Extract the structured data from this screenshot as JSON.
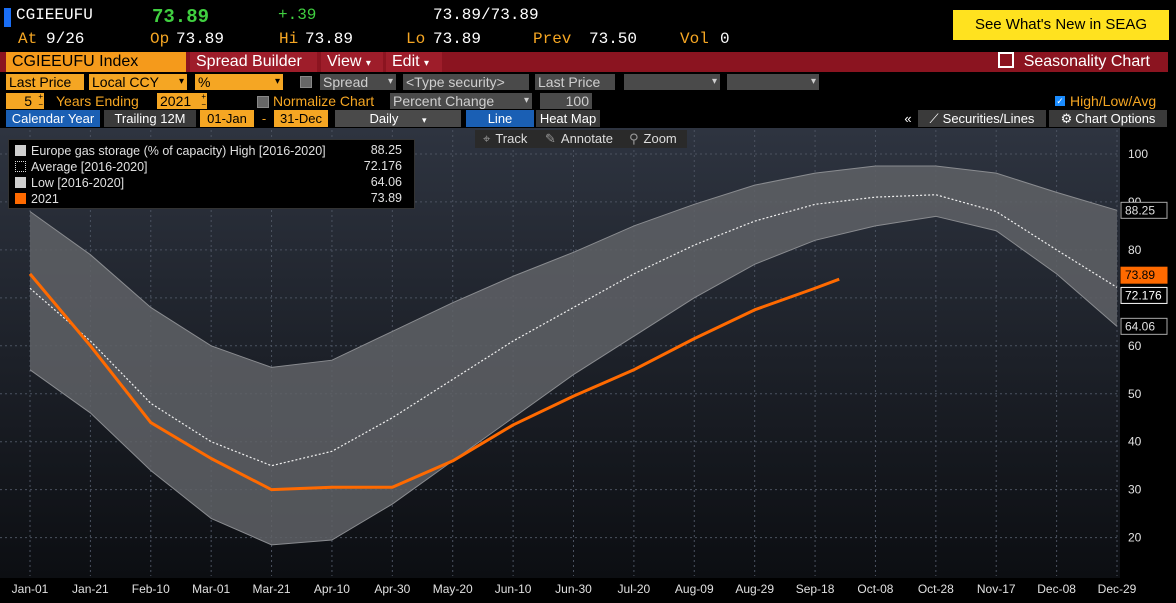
{
  "quote": {
    "ticker": "CGIEEUFU",
    "last": "73.89",
    "change": "+.39",
    "bid_ask": "73.89/73.89",
    "at_label": "At",
    "at_value": "9/26",
    "op_label": "Op",
    "op_value": "73.89",
    "hi_label": "Hi",
    "hi_value": "73.89",
    "lo_label": "Lo",
    "lo_value": "73.89",
    "prev_label": "Prev",
    "prev_value": "73.50",
    "vol_label": "Vol",
    "vol_value": "0",
    "seag_banner": "See What's New in SEAG"
  },
  "menu": {
    "index": "CGIEEUFU Index",
    "spread_builder": "Spread Builder",
    "view": "View",
    "edit": "Edit",
    "seasonality": "Seasonality Chart"
  },
  "controls": {
    "last_price": "Last Price",
    "currency": "Local CCY",
    "pct": "%",
    "spread": "Spread",
    "type_security": "<Type security>",
    "last_price_2": "Last Price",
    "years_value": "5",
    "years_label": "Years Ending",
    "year_end": "2021",
    "normalize": "Normalize Chart",
    "percent_change": "Percent Change",
    "base_value": "100",
    "high_low_avg": "High/Low/Avg"
  },
  "tabs": {
    "calendar_year": "Calendar Year",
    "trailing": "Trailing 12M",
    "from": "01-Jan",
    "dash": "-",
    "to": "31-Dec",
    "daily": "Daily",
    "line": "Line",
    "heat_map": "Heat Map",
    "collapse": "«",
    "securities": "Securities/Lines",
    "chart_options": "Chart Options"
  },
  "chart_tools": {
    "track": "Track",
    "annotate": "Annotate",
    "zoom": "Zoom"
  },
  "colors": {
    "accent": "#f5a623",
    "menu_bg": "#8b1420",
    "series_2021": "#ff6a00",
    "band": "#5a5a5a",
    "seag": "#ffe21f"
  },
  "chart_data": {
    "type": "area",
    "title": "",
    "xlabel": "",
    "ylabel": "",
    "ylim": [
      12,
      105
    ],
    "y_ticks": [
      20,
      30,
      40,
      50,
      60,
      70,
      80,
      90,
      100
    ],
    "grid": true,
    "legend_position": "top-left",
    "x_ticks": [
      "Jan-01",
      "Jan-21",
      "Feb-10",
      "Mar-01",
      "Mar-21",
      "Apr-10",
      "Apr-30",
      "May-20",
      "Jun-10",
      "Jun-30",
      "Jul-20",
      "Aug-09",
      "Aug-29",
      "Sep-18",
      "Oct-08",
      "Oct-28",
      "Nov-17",
      "Dec-08",
      "Dec-29"
    ],
    "legend": [
      {
        "name": "Europe gas storage (% of capacity) High [2016-2020]",
        "value": "88.25"
      },
      {
        "name": "Average  [2016-2020]",
        "value": "72.176"
      },
      {
        "name": "Low  [2016-2020]",
        "value": "64.06"
      },
      {
        "name": "2021",
        "value": "73.89"
      }
    ],
    "axis_value_labels": [
      "88.25",
      "73.89",
      "72.176",
      "64.06"
    ],
    "series": [
      {
        "name": "High [2016-2020]",
        "x": [
          "Jan-01",
          "Jan-21",
          "Feb-10",
          "Mar-01",
          "Mar-21",
          "Apr-10",
          "Apr-30",
          "May-20",
          "Jun-10",
          "Jun-30",
          "Jul-20",
          "Aug-09",
          "Aug-29",
          "Sep-18",
          "Oct-08",
          "Oct-28",
          "Nov-17",
          "Dec-08",
          "Dec-29"
        ],
        "values": [
          88,
          79,
          68,
          60,
          55.5,
          57,
          63,
          69,
          74.5,
          79.5,
          85,
          89.5,
          93.5,
          96,
          97.5,
          97.5,
          96,
          92,
          88.25
        ]
      },
      {
        "name": "Average [2016-2020]",
        "x": [
          "Jan-01",
          "Jan-21",
          "Feb-10",
          "Mar-01",
          "Mar-21",
          "Apr-10",
          "Apr-30",
          "May-20",
          "Jun-10",
          "Jun-30",
          "Jul-20",
          "Aug-09",
          "Aug-29",
          "Sep-18",
          "Oct-08",
          "Oct-28",
          "Nov-17",
          "Dec-08",
          "Dec-29"
        ],
        "values": [
          72,
          61,
          48,
          40,
          35,
          38,
          45,
          53,
          61,
          68,
          75,
          81,
          86,
          89.5,
          91,
          91.5,
          88,
          80,
          72.176
        ]
      },
      {
        "name": "Low [2016-2020]",
        "x": [
          "Jan-01",
          "Jan-21",
          "Feb-10",
          "Mar-01",
          "Mar-21",
          "Apr-10",
          "Apr-30",
          "May-20",
          "Jun-10",
          "Jun-30",
          "Jul-20",
          "Aug-09",
          "Aug-29",
          "Sep-18",
          "Oct-08",
          "Oct-28",
          "Nov-17",
          "Dec-08",
          "Dec-29"
        ],
        "values": [
          55,
          46,
          34,
          24,
          18.5,
          19.5,
          27,
          36,
          45,
          54,
          62,
          70,
          77,
          82,
          85,
          87,
          84,
          75,
          64.06
        ]
      },
      {
        "name": "2021",
        "x": [
          "Jan-01",
          "Jan-21",
          "Feb-10",
          "Mar-01",
          "Mar-21",
          "Apr-10",
          "Apr-30",
          "May-20",
          "Jun-10",
          "Jun-30",
          "Jul-20",
          "Aug-09",
          "Aug-29",
          "Sep-18",
          "Sep-26"
        ],
        "values": [
          75,
          60,
          44,
          36.5,
          30,
          30.5,
          30.5,
          36,
          43.5,
          49.5,
          55,
          61.5,
          67.5,
          72,
          73.89
        ]
      }
    ]
  }
}
